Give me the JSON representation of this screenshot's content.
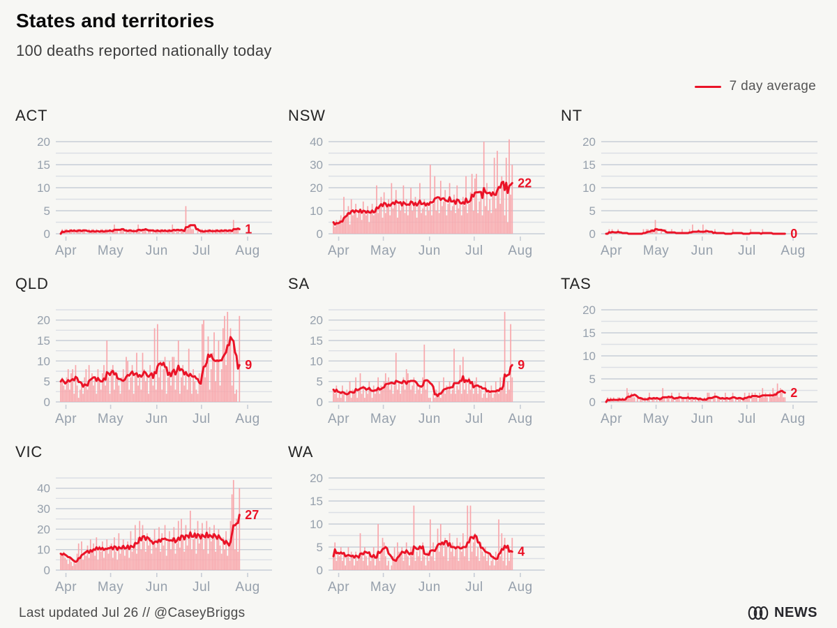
{
  "header": {
    "title": "States and territories",
    "subtitle": "100 deaths reported nationally today"
  },
  "legend": {
    "label": "7 day average"
  },
  "colors": {
    "background": "#f7f7f4",
    "bar": "#f8a6ab",
    "line": "#ea1327",
    "end_label": "#ea1327",
    "grid_major": "#c7cdd6",
    "grid_minor": "#dcdfe5",
    "axis_label": "#96a0ac",
    "tick_mark": "#c7cdd6",
    "logo": "#26262b"
  },
  "footer": {
    "credit": "Last updated Jul 26 // @CaseyBriggs",
    "logo_text": "NEWS"
  },
  "chart_layout": {
    "x_start_label_note": "daily bars from late Mar to Jul 26",
    "total_days_axis": 133,
    "month_tick_days": [
      4,
      34,
      65,
      95,
      126
    ],
    "month_labels": [
      "Apr",
      "May",
      "Jun",
      "Jul",
      "Aug"
    ]
  },
  "chart_data": [
    {
      "type": "bar",
      "state": "ACT",
      "end_label": "1",
      "grid_max": 20,
      "minor_step": 2.5,
      "yticks": [
        0,
        5,
        10,
        15,
        20
      ],
      "xticklabels": [
        "Apr",
        "May",
        "Jun",
        "Jul",
        "Aug"
      ],
      "series_note": "daily deaths; red line = 7 day trailing average",
      "daily_deaths": [
        0,
        1,
        0,
        1,
        1,
        0,
        1,
        1,
        0,
        1,
        0,
        1,
        1,
        1,
        0,
        1,
        1,
        0,
        0,
        1,
        0,
        1,
        1,
        0,
        1,
        0,
        0,
        1,
        1,
        0,
        1,
        1,
        0,
        1,
        0,
        1,
        2,
        1,
        1,
        0,
        1,
        1,
        1,
        0,
        1,
        0,
        1,
        1,
        0,
        1,
        0,
        1,
        2,
        1,
        0,
        1,
        1,
        1,
        0,
        1,
        1,
        0,
        1,
        0,
        1,
        1,
        0,
        1,
        1,
        0,
        1,
        0,
        1,
        1,
        0,
        2,
        1,
        0,
        1,
        1,
        0,
        1,
        1,
        0,
        6,
        1,
        2,
        2,
        1,
        1,
        0,
        0,
        1,
        0,
        1,
        1,
        0,
        1,
        0,
        1,
        1,
        0,
        1,
        0,
        1,
        1,
        0,
        1,
        1,
        0,
        1,
        1,
        0,
        1,
        1,
        0,
        3,
        1,
        1,
        1,
        0
      ]
    },
    {
      "type": "bar",
      "state": "NSW",
      "end_label": "22",
      "grid_max": 40,
      "minor_step": 5,
      "yticks": [
        0,
        10,
        20,
        30,
        40
      ],
      "xticklabels": [
        "Apr",
        "May",
        "Jun",
        "Jul",
        "Aug"
      ],
      "series_note": "daily deaths; red line = 7 day trailing average",
      "daily_deaths": [
        5,
        3,
        6,
        4,
        6,
        8,
        5,
        16,
        7,
        9,
        12,
        4,
        15,
        8,
        10,
        13,
        7,
        9,
        11,
        6,
        14,
        9,
        8,
        12,
        5,
        10,
        13,
        8,
        11,
        21,
        9,
        12,
        16,
        7,
        18,
        9,
        12,
        15,
        8,
        22,
        11,
        13,
        19,
        7,
        14,
        10,
        12,
        21,
        9,
        15,
        8,
        13,
        20,
        10,
        12,
        16,
        7,
        14,
        22,
        9,
        11,
        15,
        8,
        13,
        10,
        30,
        8,
        13,
        25,
        10,
        15,
        9,
        23,
        12,
        14,
        19,
        8,
        13,
        22,
        10,
        12,
        17,
        9,
        21,
        11,
        14,
        8,
        16,
        12,
        25,
        9,
        13,
        18,
        26,
        10,
        24,
        26,
        9,
        14,
        18,
        8,
        40,
        12,
        22,
        10,
        15,
        9,
        18,
        33,
        11,
        36,
        20,
        13,
        25,
        20,
        8,
        33,
        5,
        41,
        17,
        30
      ]
    },
    {
      "type": "bar",
      "state": "NT",
      "end_label": "0",
      "grid_max": 20,
      "minor_step": 2.5,
      "yticks": [
        0,
        5,
        10,
        15,
        20
      ],
      "xticklabels": [
        "Apr",
        "May",
        "Jun",
        "Jul",
        "Aug"
      ],
      "series_note": "daily deaths; red line = 7 day trailing average",
      "daily_deaths": [
        0,
        0,
        1,
        0,
        1,
        0,
        0,
        0,
        1,
        0,
        0,
        0,
        0,
        0,
        0,
        0,
        0,
        0,
        0,
        0,
        0,
        0,
        0,
        0,
        0,
        1,
        0,
        1,
        1,
        0,
        1,
        1,
        0,
        3,
        1,
        0,
        0,
        1,
        0,
        0,
        1,
        0,
        0,
        0,
        1,
        0,
        0,
        0,
        0,
        0,
        0,
        1,
        0,
        0,
        0,
        0,
        1,
        0,
        2,
        0,
        0,
        0,
        1,
        0,
        0,
        2,
        0,
        1,
        0,
        0,
        0,
        0,
        0,
        1,
        0,
        0,
        0,
        0,
        0,
        0,
        0,
        0,
        0,
        0,
        0,
        1,
        0,
        0,
        0,
        0,
        0,
        0,
        0,
        0,
        0,
        0,
        0,
        1,
        0,
        0,
        0,
        0,
        0,
        0,
        0,
        1,
        0,
        0,
        0,
        0,
        0,
        0,
        0,
        0,
        0,
        0,
        0,
        0,
        0,
        0,
        0
      ]
    },
    {
      "type": "bar",
      "state": "QLD",
      "end_label": "9",
      "grid_max": 22.5,
      "minor_step": 2.5,
      "yticks": [
        0,
        5,
        10,
        15,
        20
      ],
      "xticklabels": [
        "Apr",
        "May",
        "Jun",
        "Jul",
        "Aug"
      ],
      "series_note": "daily deaths; red line = 7 day trailing average",
      "daily_deaths": [
        5,
        6,
        4,
        3,
        6,
        8,
        3,
        7,
        8,
        2,
        9,
        4,
        1,
        3,
        5,
        2,
        6,
        8,
        3,
        9,
        5,
        7,
        4,
        6,
        2,
        8,
        5,
        3,
        7,
        9,
        4,
        15,
        6,
        2,
        8,
        9,
        3,
        6,
        7,
        4,
        2,
        6,
        8,
        5,
        11,
        10,
        3,
        6,
        9,
        2,
        7,
        12,
        4,
        6,
        3,
        12,
        8,
        5,
        7,
        2,
        9,
        6,
        4,
        18,
        3,
        19,
        6,
        10,
        3,
        8,
        11,
        2,
        6,
        10,
        4,
        11,
        11,
        3,
        8,
        15,
        2,
        6,
        9,
        4,
        7,
        3,
        13,
        6,
        2,
        8,
        5,
        3,
        2,
        7,
        4,
        19,
        20,
        6,
        9,
        16,
        3,
        8,
        12,
        17,
        5,
        10,
        15,
        4,
        8,
        18,
        21,
        9,
        22,
        15,
        18,
        4,
        15,
        2,
        3,
        0,
        21
      ]
    },
    {
      "type": "bar",
      "state": "SA",
      "end_label": "9",
      "grid_max": 22.5,
      "minor_step": 2.5,
      "yticks": [
        0,
        5,
        10,
        15,
        20
      ],
      "xticklabels": [
        "Apr",
        "May",
        "Jun",
        "Jul",
        "Aug"
      ],
      "series_note": "daily deaths; red line = 7 day trailing average",
      "daily_deaths": [
        3,
        2,
        4,
        1,
        2,
        1,
        4,
        2,
        0,
        3,
        2,
        5,
        1,
        3,
        2,
        6,
        1,
        3,
        7,
        2,
        4,
        1,
        3,
        2,
        5,
        3,
        1,
        4,
        2,
        3,
        6,
        2,
        4,
        3,
        5,
        7,
        4,
        6,
        3,
        5,
        2,
        4,
        12,
        3,
        5,
        2,
        4,
        6,
        3,
        8,
        7,
        5,
        3,
        4,
        6,
        2,
        5,
        3,
        4,
        2,
        6,
        14,
        3,
        5,
        1,
        1,
        0,
        2,
        1,
        3,
        2,
        5,
        1,
        3,
        6,
        2,
        4,
        3,
        5,
        2,
        3,
        13,
        2,
        4,
        3,
        9,
        2,
        11,
        3,
        5,
        2,
        6,
        3,
        4,
        2,
        5,
        6,
        2,
        4,
        3,
        1,
        2,
        5,
        1,
        3,
        2,
        4,
        1,
        2,
        5,
        3,
        2,
        6,
        3,
        6,
        22,
        2,
        5,
        3,
        19,
        6
      ]
    },
    {
      "type": "bar",
      "state": "TAS",
      "end_label": "2",
      "grid_max": 20,
      "minor_step": 2.5,
      "yticks": [
        0,
        5,
        10,
        15,
        20
      ],
      "xticklabels": [
        "Apr",
        "May",
        "Jun",
        "Jul",
        "Aug"
      ],
      "series_note": "daily deaths; red line = 7 day trailing average",
      "daily_deaths": [
        0,
        1,
        0,
        1,
        0,
        1,
        0,
        0,
        1,
        1,
        0,
        1,
        0,
        1,
        3,
        2,
        1,
        2,
        1,
        1,
        0,
        1,
        0,
        1,
        1,
        0,
        1,
        0,
        1,
        2,
        0,
        1,
        1,
        0,
        1,
        0,
        1,
        1,
        3,
        1,
        0,
        1,
        1,
        0,
        2,
        1,
        0,
        1,
        1,
        2,
        0,
        1,
        1,
        0,
        1,
        2,
        0,
        1,
        1,
        0,
        1,
        0,
        1,
        1,
        0,
        0,
        1,
        0,
        2,
        2,
        1,
        0,
        1,
        2,
        0,
        1,
        1,
        0,
        1,
        0,
        2,
        1,
        0,
        1,
        1,
        2,
        0,
        1,
        0,
        1,
        1,
        0,
        1,
        2,
        1,
        1,
        2,
        0,
        2,
        1,
        2,
        1,
        0,
        2,
        1,
        3,
        1,
        2,
        1,
        0,
        2,
        1,
        3,
        2,
        2,
        4,
        1,
        3,
        2,
        1,
        1
      ]
    },
    {
      "type": "bar",
      "state": "VIC",
      "end_label": "27",
      "grid_max": 45,
      "minor_step": 5,
      "yticks": [
        0,
        10,
        20,
        30,
        40
      ],
      "xticklabels": [
        "Apr",
        "May",
        "Jun",
        "Jul",
        "Aug"
      ],
      "series_note": "daily deaths; red line = 7 day trailing average",
      "daily_deaths": [
        8,
        7,
        9,
        6,
        5,
        3,
        6,
        4,
        2,
        5,
        3,
        8,
        13,
        6,
        14,
        5,
        9,
        7,
        12,
        6,
        15,
        9,
        13,
        7,
        16,
        5,
        12,
        9,
        14,
        6,
        11,
        15,
        8,
        12,
        13,
        6,
        16,
        9,
        5,
        18,
        8,
        12,
        15,
        7,
        10,
        14,
        6,
        19,
        9,
        13,
        22,
        8,
        16,
        24,
        10,
        22,
        14,
        9,
        18,
        12,
        16,
        8,
        13,
        20,
        11,
        15,
        21,
        9,
        18,
        12,
        22,
        7,
        14,
        19,
        10,
        16,
        21,
        8,
        13,
        24,
        11,
        25,
        15,
        9,
        22,
        12,
        17,
        29,
        10,
        15,
        20,
        8,
        24,
        13,
        18,
        23,
        10,
        16,
        24,
        8,
        21,
        14,
        18,
        22,
        9,
        15,
        20,
        12,
        8,
        16,
        10,
        19,
        7,
        12,
        24,
        37,
        44,
        10,
        25,
        9,
        40
      ]
    },
    {
      "type": "bar",
      "state": "WA",
      "end_label": "4",
      "grid_max": 20,
      "minor_step": 2.5,
      "yticks": [
        0,
        5,
        10,
        15,
        20
      ],
      "xticklabels": [
        "Apr",
        "May",
        "Jun",
        "Jul",
        "Aug"
      ],
      "series_note": "daily deaths; red line = 7 day trailing average",
      "daily_deaths": [
        3,
        6,
        2,
        4,
        3,
        5,
        2,
        4,
        1,
        3,
        5,
        2,
        4,
        3,
        1,
        4,
        2,
        3,
        8,
        4,
        2,
        5,
        3,
        1,
        4,
        2,
        3,
        5,
        1,
        3,
        10,
        2,
        4,
        7,
        6,
        3,
        1,
        2,
        0,
        1,
        3,
        5,
        2,
        6,
        4,
        3,
        5,
        2,
        4,
        6,
        3,
        1,
        5,
        3,
        14,
        2,
        4,
        3,
        5,
        2,
        6,
        3,
        1,
        4,
        2,
        11,
        3,
        6,
        2,
        5,
        9,
        4,
        10,
        6,
        3,
        7,
        5,
        2,
        8,
        4,
        6,
        3,
        5,
        7,
        2,
        6,
        4,
        8,
        3,
        5,
        14,
        2,
        14,
        4,
        6,
        8,
        3,
        5,
        2,
        6,
        4,
        3,
        5,
        2,
        4,
        1,
        2,
        3,
        1,
        4,
        2,
        11,
        3,
        8,
        2,
        7,
        1,
        5,
        2,
        4,
        7
      ]
    }
  ]
}
